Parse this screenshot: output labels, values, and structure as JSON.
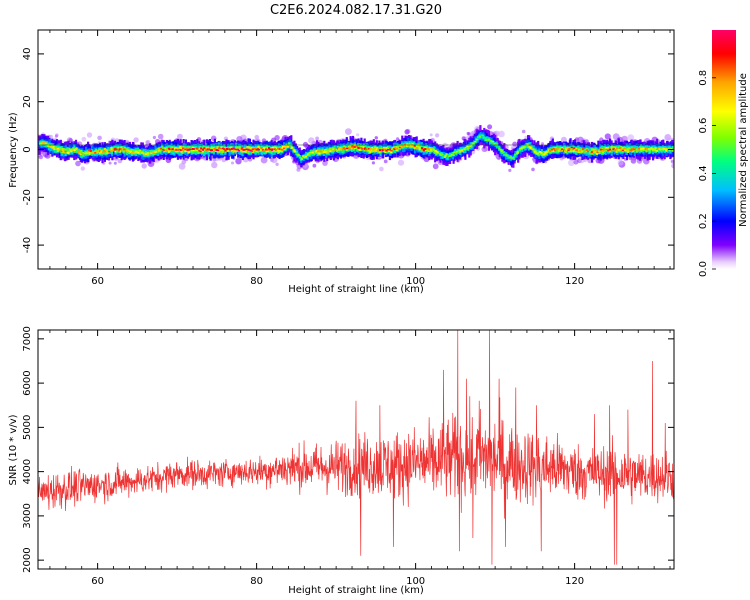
{
  "title": "C2E6.2024.082.17.31.G20",
  "chart_data": [
    {
      "type": "heatmap",
      "xlabel": "Height of straight line (km)",
      "ylabel": "Frequency (Hz)",
      "xlim": [
        52.5,
        132.5
      ],
      "ylim": [
        -50,
        50
      ],
      "xticks": [
        60,
        80,
        100,
        120
      ],
      "yticks": [
        -40,
        -20,
        0,
        20,
        40
      ],
      "colorbar": {
        "label": "Normalized spectral amplitude",
        "range": [
          0,
          1
        ],
        "ticks": [
          "0.0",
          "0.2",
          "0.4",
          "0.6",
          "0.8"
        ],
        "colormap": "gist_rainbow",
        "colors": [
          "#ffffff",
          "#8000ff",
          "#0000ff",
          "#00bfff",
          "#00ff80",
          "#80ff00",
          "#ffff00",
          "#ffa500",
          "#ff0000",
          "#ff0066"
        ]
      },
      "ridge": {
        "x": [
          52.5,
          53,
          54,
          55,
          56,
          57,
          58,
          59,
          60,
          61,
          62,
          63,
          64,
          65,
          66,
          67,
          68,
          69,
          70,
          72,
          74,
          76,
          78,
          80,
          82,
          83,
          84,
          85,
          85.5,
          86,
          87,
          88,
          90,
          92,
          94,
          96,
          97,
          98,
          99,
          100,
          101,
          102,
          103,
          104,
          105,
          106,
          107,
          108,
          109,
          110,
          111,
          112,
          113,
          114,
          115,
          116,
          117,
          118,
          120,
          122,
          124,
          126,
          128,
          130,
          132.5
        ],
        "y": [
          2,
          3,
          1,
          0,
          -1,
          0,
          -2,
          -1,
          -1,
          -1,
          0,
          0,
          -1,
          -1,
          -2,
          -1,
          0,
          0,
          0,
          0,
          0,
          0,
          0,
          0,
          0,
          0,
          2,
          -2,
          -4,
          -3,
          -1,
          -1,
          0,
          1,
          0,
          0,
          0,
          1,
          2,
          1,
          0,
          0,
          -2,
          -3,
          -1,
          0,
          2,
          6,
          4,
          2,
          -2,
          -4,
          0,
          2,
          -1,
          -2,
          0,
          0,
          0,
          -1,
          0,
          0,
          0,
          0,
          0
        ],
        "amplitude": [
          0.6,
          0.7,
          0.7,
          0.8,
          0.75,
          0.7,
          0.75,
          0.8,
          0.8,
          0.75,
          0.85,
          0.8,
          0.75,
          0.7,
          0.7,
          0.75,
          0.8,
          0.85,
          0.95,
          0.95,
          0.95,
          0.95,
          1.0,
          0.95,
          0.95,
          0.9,
          0.7,
          0.6,
          0.55,
          0.6,
          0.7,
          0.75,
          0.8,
          0.9,
          0.85,
          0.9,
          0.85,
          0.8,
          0.75,
          0.8,
          0.85,
          0.7,
          0.6,
          0.55,
          0.6,
          0.65,
          0.6,
          0.5,
          0.55,
          0.6,
          0.55,
          0.5,
          0.6,
          0.65,
          0.7,
          0.7,
          0.8,
          0.85,
          0.85,
          0.8,
          0.85,
          0.8,
          0.75,
          0.7,
          0.65
        ]
      }
    },
    {
      "type": "line",
      "xlabel": "Height of straight line (km)",
      "ylabel": "SNR (10 * v/v)",
      "xlim": [
        52.5,
        132.5
      ],
      "ylim": [
        1800,
        7200
      ],
      "xticks": [
        60,
        80,
        100,
        120
      ],
      "yticks": [
        2000,
        3000,
        4000,
        5000,
        6000,
        7000
      ],
      "color": "#ee3333",
      "series": [
        {
          "x": [
            52.5,
            55,
            57.5,
            60,
            62.5,
            65,
            67.5,
            70,
            72.5,
            75,
            77.5,
            80,
            82.5,
            85,
            87.5,
            90,
            92.5,
            95,
            97.5,
            100,
            102.5,
            105,
            107.5,
            110,
            112.5,
            115,
            117.5,
            120,
            122.5,
            125,
            127.5,
            130,
            132.5
          ],
          "values": [
            3500,
            3600,
            3650,
            3700,
            3750,
            3800,
            3850,
            3950,
            3950,
            3950,
            4000,
            4000,
            4050,
            4100,
            4100,
            4100,
            4150,
            4150,
            4150,
            4200,
            4200,
            4300,
            4300,
            4300,
            4200,
            4100,
            4100,
            4000,
            3950,
            3950,
            3900,
            3900,
            3900
          ],
          "amplitude": [
            500,
            550,
            500,
            450,
            450,
            400,
            400,
            400,
            400,
            400,
            350,
            400,
            500,
            600,
            650,
            750,
            850,
            900,
            950,
            1000,
            1050,
            1200,
            1250,
            1250,
            1150,
            1000,
            900,
            800,
            750,
            800,
            750,
            700,
            700
          ]
        }
      ],
      "spikes": [
        {
          "x": 92.5,
          "y": 5600
        },
        {
          "x": 93.1,
          "y": 2100
        },
        {
          "x": 95.5,
          "y": 5500
        },
        {
          "x": 97.2,
          "y": 2300
        },
        {
          "x": 103.5,
          "y": 6300
        },
        {
          "x": 105.3,
          "y": 7200
        },
        {
          "x": 105.5,
          "y": 2200
        },
        {
          "x": 106.4,
          "y": 6100
        },
        {
          "x": 107.2,
          "y": 2500
        },
        {
          "x": 108.0,
          "y": 5600
        },
        {
          "x": 109.3,
          "y": 7200
        },
        {
          "x": 109.6,
          "y": 1900
        },
        {
          "x": 110.5,
          "y": 6100
        },
        {
          "x": 111.3,
          "y": 2300
        },
        {
          "x": 112.6,
          "y": 5900
        },
        {
          "x": 115.2,
          "y": 5500
        },
        {
          "x": 115.8,
          "y": 2200
        },
        {
          "x": 122.5,
          "y": 5300
        },
        {
          "x": 124.4,
          "y": 5500
        },
        {
          "x": 125.0,
          "y": 1900
        },
        {
          "x": 125.3,
          "y": 1900
        },
        {
          "x": 126.7,
          "y": 5400
        },
        {
          "x": 129.8,
          "y": 6500
        },
        {
          "x": 131.4,
          "y": 5100
        }
      ]
    }
  ]
}
